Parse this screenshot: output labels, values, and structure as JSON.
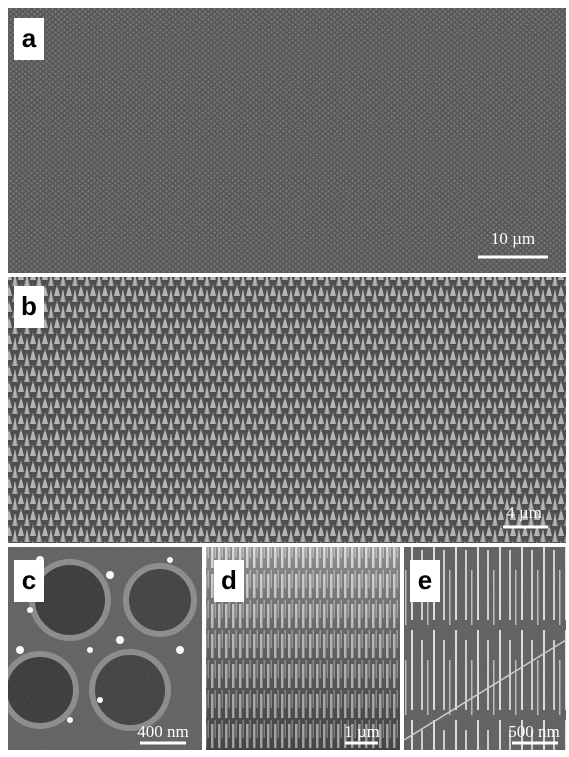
{
  "panels": [
    {
      "label": "a",
      "scale_bar": "10 µm"
    },
    {
      "label": "b",
      "scale_bar": "4 µm"
    },
    {
      "label": "c",
      "scale_bar": "400 nm"
    },
    {
      "label": "d",
      "scale_bar": "1 µm"
    },
    {
      "label": "e",
      "scale_bar": "500 nm"
    }
  ]
}
